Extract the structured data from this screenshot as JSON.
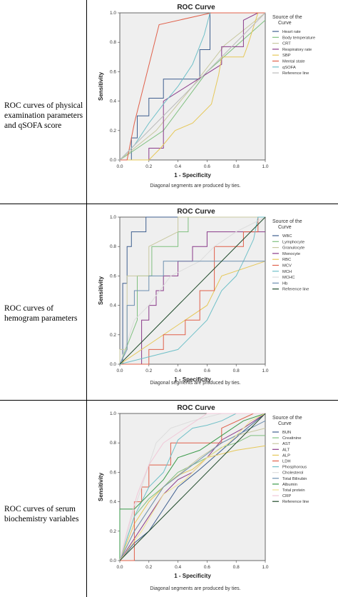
{
  "rows": [
    {
      "label": "ROC curves of physical\nexamination parameters\nand qSOFA score"
    },
    {
      "label": "ROC curves of\nhemogram parameters"
    },
    {
      "label": "ROC curves of serum\nbiochemistry variables"
    }
  ],
  "chart_data": [
    {
      "type": "line",
      "title": "ROC Curve",
      "xlabel": "1 - Specificity",
      "ylabel": "Sensitivity",
      "xlim": [
        0,
        1
      ],
      "ylim": [
        0,
        1
      ],
      "ticks": [
        "0.0",
        "0.2",
        "0.4",
        "0.6",
        "0.8",
        "1.0"
      ],
      "legend_title": "Source of the Curve",
      "footnote": "Diagonal segments are produced by ties.",
      "series": [
        {
          "name": "Heart rate",
          "color": "#3f5f8f",
          "x": [
            0,
            0.08,
            0.08,
            0.12,
            0.12,
            0.2,
            0.2,
            0.3,
            0.3,
            0.55,
            0.55,
            0.62,
            0.62
          ],
          "y": [
            0,
            0,
            0.15,
            0.15,
            0.3,
            0.3,
            0.42,
            0.42,
            0.55,
            0.55,
            0.75,
            0.75,
            1.0
          ]
        },
        {
          "name": "Body temperature",
          "color": "#7fc07f",
          "x": [
            0,
            0.3,
            0.6,
            1.0
          ],
          "y": [
            0,
            0.2,
            0.6,
            0.95
          ]
        },
        {
          "name": "CRT",
          "color": "#c8c8a0",
          "x": [
            0,
            0.25,
            0.5,
            0.72,
            1.0
          ],
          "y": [
            0,
            0.2,
            0.5,
            0.78,
            1.0
          ]
        },
        {
          "name": "Respiratory rate",
          "color": "#8a3a8a",
          "x": [
            0,
            0.2,
            0.2,
            0.3,
            0.3,
            0.7,
            0.7,
            0.85,
            0.85,
            0.95,
            1.0
          ],
          "y": [
            0,
            0,
            0.08,
            0.08,
            0.4,
            0.65,
            0.77,
            0.77,
            0.95,
            1.0,
            1.0
          ]
        },
        {
          "name": "SBP",
          "color": "#e6c85a",
          "x": [
            0,
            0.2,
            0.28,
            0.38,
            0.5,
            0.63,
            0.68,
            0.7,
            0.85,
            0.88,
            0.95,
            1.0
          ],
          "y": [
            0,
            0,
            0.08,
            0.2,
            0.25,
            0.38,
            0.58,
            0.7,
            0.7,
            0.78,
            1.0,
            1.0
          ]
        },
        {
          "name": "Mental state",
          "color": "#e0604a",
          "x": [
            0,
            0.05,
            0.1,
            0.27,
            0.63,
            0.63,
            1.0
          ],
          "y": [
            0,
            0,
            0.25,
            0.92,
            1.0,
            1.0,
            1.0
          ]
        },
        {
          "name": "qSOFA",
          "color": "#6fc0c8",
          "x": [
            0,
            0.1,
            0.2,
            0.3,
            0.4,
            0.5,
            0.58,
            0.62
          ],
          "y": [
            0,
            0.1,
            0.25,
            0.38,
            0.5,
            0.65,
            0.85,
            1.0
          ]
        },
        {
          "name": "Reference line",
          "color": "#bbbbbb",
          "x": [
            0,
            1
          ],
          "y": [
            0,
            1
          ]
        }
      ]
    },
    {
      "type": "line",
      "title": "ROC Curve",
      "xlabel": "1 - Specificity",
      "ylabel": "Sensitivity",
      "xlim": [
        0,
        1
      ],
      "ylim": [
        0,
        1
      ],
      "ticks": [
        "0.0",
        "0.2",
        "0.4",
        "0.6",
        "0.8",
        "1.0"
      ],
      "legend_title": "Source of the Curve",
      "footnote": "Diagonal segments are produced by ties.",
      "series": [
        {
          "name": "WBC",
          "color": "#3f5f8f",
          "x": [
            0,
            0.02,
            0.02,
            0.05,
            0.05,
            0.08,
            0.08,
            0.18,
            0.18,
            1.0
          ],
          "y": [
            0,
            0,
            0.55,
            0.55,
            0.8,
            0.8,
            0.9,
            0.9,
            1.0,
            1.0
          ]
        },
        {
          "name": "Lymphocyte",
          "color": "#7fc07f",
          "x": [
            0,
            0.12,
            0.12,
            0.22,
            0.22,
            0.4,
            0.4,
            0.47,
            0.47,
            1.0
          ],
          "y": [
            0,
            0.3,
            0.6,
            0.6,
            0.8,
            0.8,
            0.9,
            0.9,
            1.0,
            1.0
          ]
        },
        {
          "name": "Granulocyte",
          "color": "#c8c8a0",
          "x": [
            0,
            0.0,
            0.05,
            0.05,
            0.2,
            0.2,
            0.4,
            0.4,
            1.0
          ],
          "y": [
            0,
            0.1,
            0.1,
            0.6,
            0.6,
            0.8,
            0.9,
            1.0,
            1.0
          ]
        },
        {
          "name": "Monocyte",
          "color": "#8a3a8a",
          "x": [
            0,
            0.15,
            0.15,
            0.2,
            0.2,
            0.25,
            0.25,
            0.3,
            0.3,
            0.4,
            0.4,
            0.5,
            0.5,
            0.6,
            0.6,
            1.0
          ],
          "y": [
            0,
            0,
            0.3,
            0.3,
            0.4,
            0.4,
            0.5,
            0.5,
            0.6,
            0.6,
            0.7,
            0.7,
            0.8,
            0.8,
            0.9,
            0.9
          ]
        },
        {
          "name": "RBC",
          "color": "#e6c85a",
          "x": [
            0,
            0.6,
            0.7,
            1.0
          ],
          "y": [
            0,
            0.4,
            0.6,
            0.7
          ]
        },
        {
          "name": "MCV",
          "color": "#e0604a",
          "x": [
            0,
            0.2,
            0.2,
            0.3,
            0.3,
            0.45,
            0.45,
            0.55,
            0.55,
            0.65,
            0.65,
            0.85,
            0.85,
            0.95,
            0.95,
            1.0
          ],
          "y": [
            0,
            0,
            0.1,
            0.1,
            0.2,
            0.2,
            0.3,
            0.3,
            0.5,
            0.5,
            0.8,
            0.8,
            0.9,
            0.9,
            1.0,
            1.0
          ]
        },
        {
          "name": "MCH",
          "color": "#6fc0c8",
          "x": [
            0,
            0.4,
            0.5,
            0.6,
            0.7,
            0.8,
            0.85,
            0.92,
            0.95,
            1.0
          ],
          "y": [
            0,
            0.1,
            0.2,
            0.3,
            0.5,
            0.6,
            0.7,
            0.85,
            1.0,
            1.0
          ]
        },
        {
          "name": "MCHC",
          "color": "#dddddd",
          "x": [
            0,
            0.1,
            0.2,
            0.35,
            0.55,
            0.65,
            0.8,
            1.0
          ],
          "y": [
            0,
            0.3,
            0.4,
            0.6,
            0.7,
            0.8,
            0.9,
            1.0
          ]
        },
        {
          "name": "Hb",
          "color": "#6d8fb0",
          "x": [
            0,
            0.05,
            0.05,
            0.1,
            0.1,
            0.2,
            0.2,
            0.3,
            0.3,
            1.0
          ],
          "y": [
            0,
            0.1,
            0.4,
            0.4,
            0.5,
            0.5,
            0.6,
            0.6,
            0.7,
            0.7
          ]
        },
        {
          "name": "Reference line",
          "color": "#1f4a2a",
          "x": [
            0,
            1
          ],
          "y": [
            0,
            1
          ]
        }
      ]
    },
    {
      "type": "line",
      "title": "ROC Curve",
      "xlabel": "1 - Specificity",
      "ylabel": "Sensitivity",
      "xlim": [
        0,
        1
      ],
      "ylim": [
        0,
        1
      ],
      "ticks": [
        "0.0",
        "0.2",
        "0.4",
        "0.6",
        "0.8",
        "1.0"
      ],
      "legend_title": "Source of the Curve",
      "footnote": "Diagonal segments are produced by ties.",
      "series": [
        {
          "name": "BUN",
          "color": "#3f5f8f",
          "x": [
            0,
            0.1,
            0.2,
            0.3,
            0.4,
            0.55,
            0.7,
            0.85,
            1.0
          ],
          "y": [
            0,
            0.12,
            0.2,
            0.35,
            0.5,
            0.62,
            0.75,
            0.88,
            1.0
          ]
        },
        {
          "name": "Creatinine",
          "color": "#7fc07f",
          "x": [
            0,
            0.1,
            0.2,
            0.3,
            0.4,
            0.5,
            0.6,
            0.7,
            0.8,
            0.9,
            1.0
          ],
          "y": [
            0,
            0.3,
            0.42,
            0.5,
            0.6,
            0.65,
            0.7,
            0.77,
            0.8,
            0.85,
            0.85
          ]
        },
        {
          "name": "AST",
          "color": "#c8c8a0",
          "x": [
            0,
            0.1,
            0.2,
            0.3,
            0.45,
            0.55,
            0.7,
            0.8,
            1.0
          ],
          "y": [
            0,
            0.2,
            0.35,
            0.5,
            0.62,
            0.7,
            0.8,
            0.85,
            0.9
          ]
        },
        {
          "name": "ALT",
          "color": "#8a3a8a",
          "x": [
            0,
            0.1,
            0.2,
            0.3,
            0.4,
            0.5,
            0.6,
            0.7,
            0.85,
            1.0
          ],
          "y": [
            0,
            0.15,
            0.3,
            0.45,
            0.55,
            0.6,
            0.7,
            0.82,
            0.9,
            1.0
          ]
        },
        {
          "name": "ALP",
          "color": "#e6c85a",
          "x": [
            0,
            0.1,
            0.2,
            0.3,
            0.4,
            0.5,
            0.6,
            0.8,
            1.0
          ],
          "y": [
            0,
            0.25,
            0.4,
            0.5,
            0.58,
            0.62,
            0.7,
            0.75,
            0.78
          ]
        },
        {
          "name": "LDH",
          "color": "#e0604a",
          "x": [
            0,
            0.1,
            0.1,
            0.15,
            0.15,
            0.2,
            0.2,
            0.35,
            0.35,
            0.7,
            0.7,
            0.92,
            1.0
          ],
          "y": [
            0,
            0,
            0.4,
            0.4,
            0.5,
            0.5,
            0.65,
            0.65,
            0.8,
            0.8,
            0.9,
            1.0,
            1.0
          ]
        },
        {
          "name": "Phosphorous",
          "color": "#6fc0c8",
          "x": [
            0,
            0.1,
            0.2,
            0.3,
            0.4,
            0.5,
            0.6,
            0.7,
            0.8,
            1.0
          ],
          "y": [
            0,
            0.3,
            0.5,
            0.6,
            0.82,
            0.9,
            0.92,
            0.95,
            1.0,
            1.0
          ]
        },
        {
          "name": "Cholesterol",
          "color": "#dddddd",
          "x": [
            0,
            0.1,
            0.2,
            0.25,
            0.35,
            0.5,
            0.7,
            1.0
          ],
          "y": [
            0,
            0.35,
            0.65,
            0.8,
            0.9,
            0.95,
            1.0,
            1.0
          ]
        },
        {
          "name": "Total Bilirubin",
          "color": "#6d8fb0",
          "x": [
            0,
            0.1,
            0.2,
            0.3,
            0.5,
            0.7,
            1.0
          ],
          "y": [
            0,
            0.2,
            0.35,
            0.5,
            0.65,
            0.8,
            0.95
          ]
        },
        {
          "name": "Albumin",
          "color": "#3a9a4a",
          "x": [
            0,
            0.0,
            0.1,
            0.2,
            0.3,
            0.4,
            0.55,
            0.7,
            0.85,
            1.0
          ],
          "y": [
            0,
            0.35,
            0.35,
            0.45,
            0.55,
            0.7,
            0.75,
            0.85,
            0.95,
            1.0
          ]
        },
        {
          "name": "Total protein",
          "color": "#f0e090",
          "x": [
            0,
            0.15,
            0.3,
            0.45,
            0.6,
            0.75,
            0.9,
            1.0
          ],
          "y": [
            0,
            0.2,
            0.45,
            0.55,
            0.7,
            0.8,
            0.95,
            1.0
          ]
        },
        {
          "name": "CRP",
          "color": "#f0c8d8",
          "x": [
            0,
            0.05,
            0.12,
            0.2,
            0.3,
            0.45,
            0.6,
            1.0
          ],
          "y": [
            0,
            0.2,
            0.45,
            0.65,
            0.8,
            0.9,
            1.0,
            1.0
          ]
        },
        {
          "name": "Reference line",
          "color": "#1f4a2a",
          "x": [
            0,
            1
          ],
          "y": [
            0,
            1
          ]
        }
      ]
    }
  ]
}
